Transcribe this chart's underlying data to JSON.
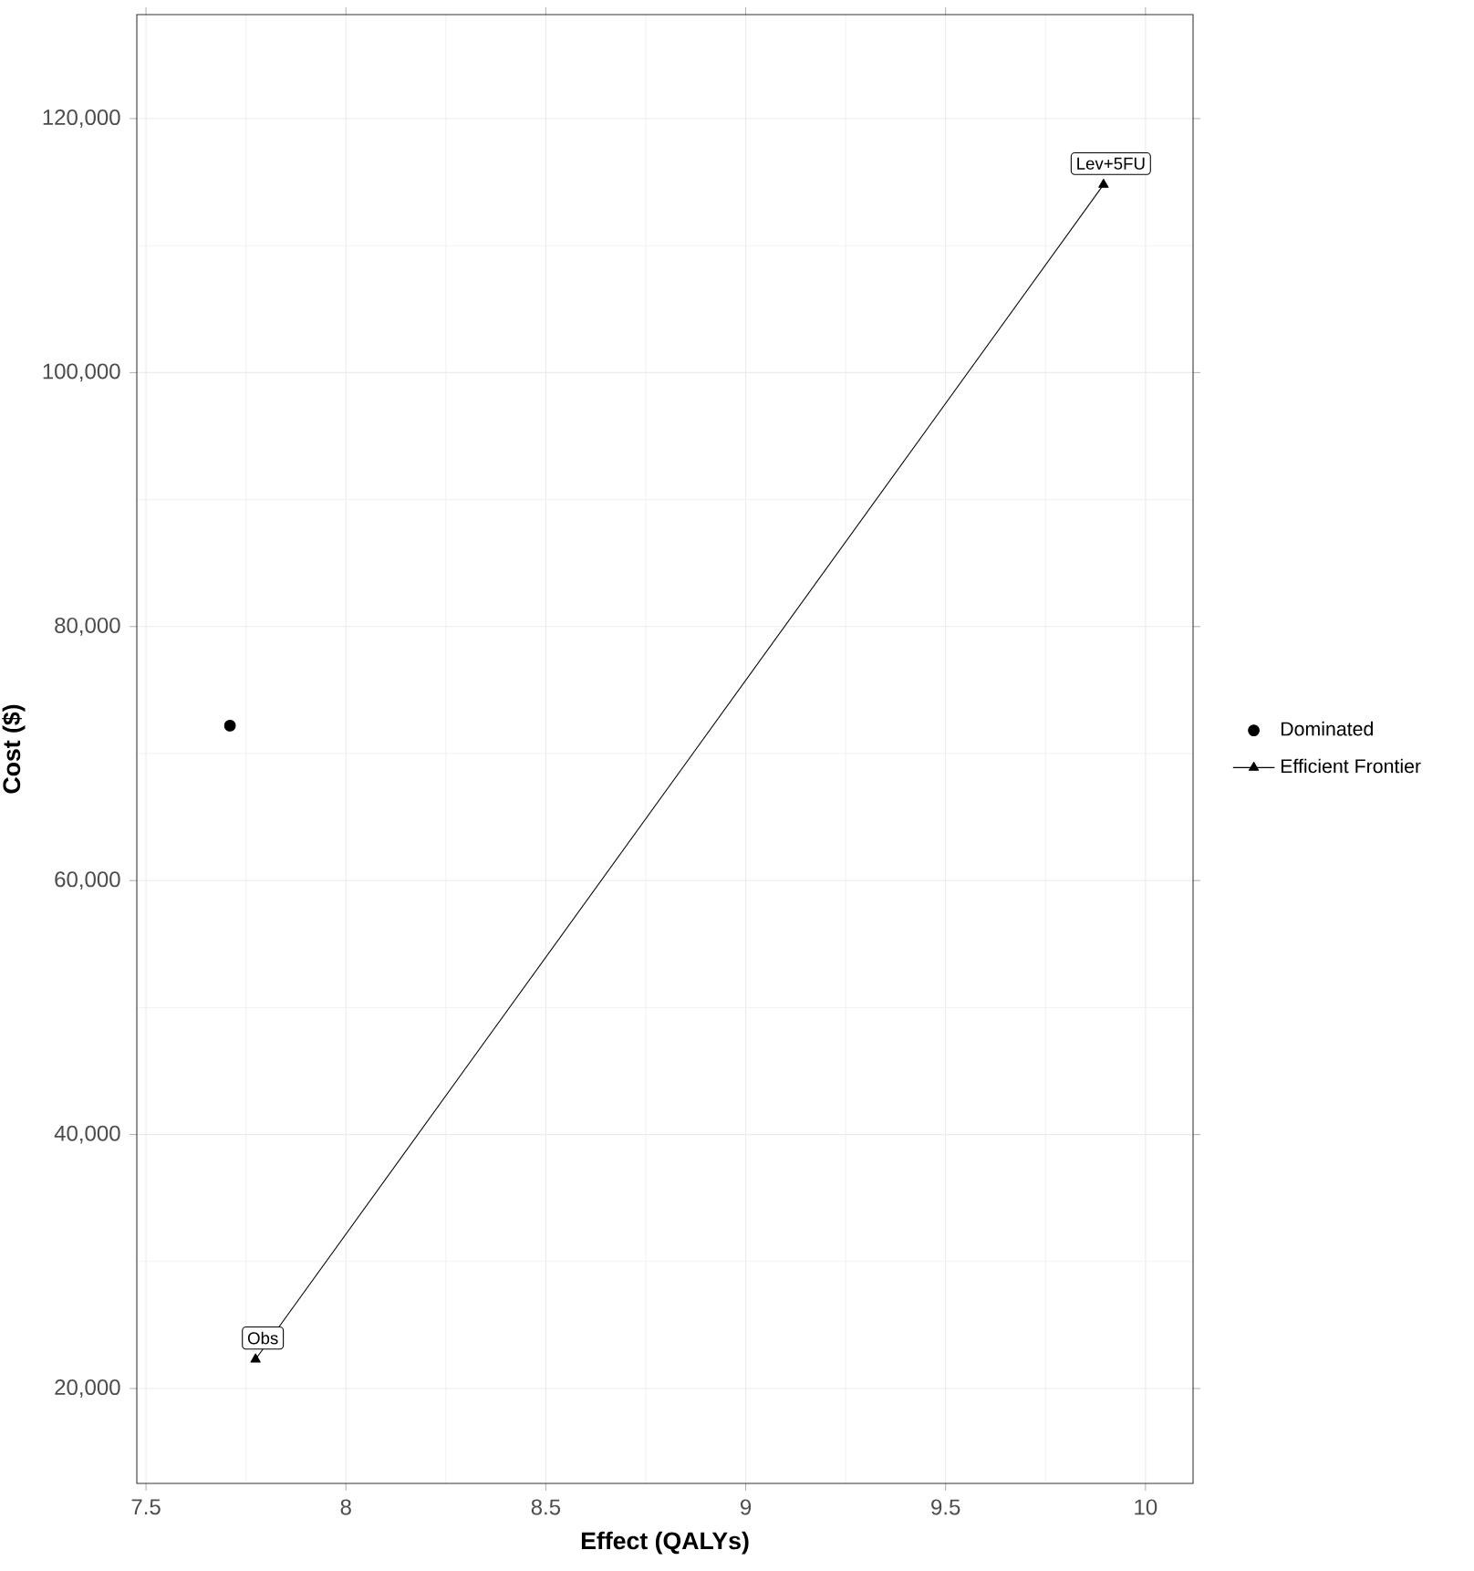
{
  "chart_data": {
    "type": "scatter",
    "xlabel": "Effect (QALYs)",
    "ylabel": "Cost ($)",
    "xlim": [
      7.477,
      10.119
    ],
    "ylim": [
      12530,
      128190
    ],
    "xticks": [
      7.5,
      8,
      8.5,
      9,
      9.5,
      10
    ],
    "yticks": [
      {
        "value": 20000,
        "label": "20,000"
      },
      {
        "value": 40000,
        "label": "40,000"
      },
      {
        "value": 60000,
        "label": "60,000"
      },
      {
        "value": 80000,
        "label": "80,000"
      },
      {
        "value": 100000,
        "label": "100,000"
      },
      {
        "value": 120000,
        "label": "120,000"
      }
    ],
    "grid": true,
    "legend": "right",
    "line_style": "solid",
    "series": [
      {
        "name": "Dominated",
        "marker": "circle",
        "color": "#000000",
        "x": [
          7.71
        ],
        "values": [
          72200
        ]
      },
      {
        "name": "Efficient Frontier",
        "type": "line",
        "marker": "triangle",
        "color": "#000000",
        "x": [
          7.774,
          9.895
        ],
        "values": [
          22300,
          114800
        ]
      }
    ],
    "annotations": [
      {
        "text": "Obs",
        "x": 7.774,
        "y": 22300
      },
      {
        "text": "Lev+5FU",
        "x": 9.895,
        "y": 114800
      }
    ]
  }
}
